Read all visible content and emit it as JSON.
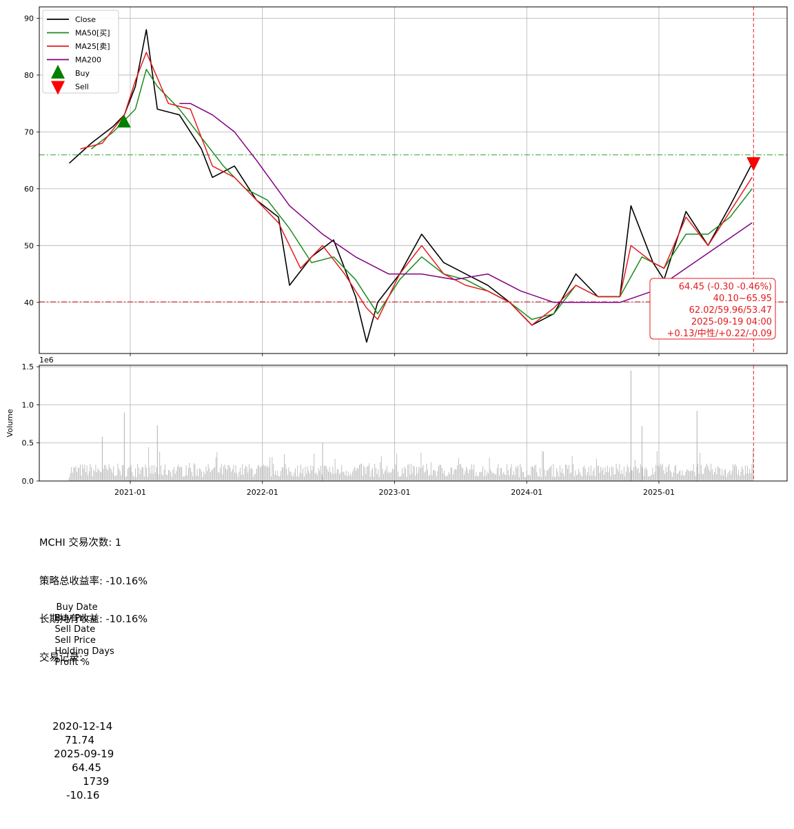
{
  "chart_data": [
    {
      "type": "line",
      "ylim": [
        31,
        92
      ],
      "yticks": [
        "90",
        "80",
        "70",
        "60",
        "50",
        "40"
      ],
      "x_tick_labels": [
        "2021-01",
        "2022-01",
        "2023-01",
        "2024-01",
        "2025-01"
      ],
      "grid": true,
      "legend_position": "upper-left",
      "series": [
        {
          "name": "Close",
          "color": "#000000",
          "x": [
            "2020-07",
            "2020-09",
            "2020-11",
            "2020-12",
            "2021-01",
            "2021-02",
            "2021-03",
            "2021-05",
            "2021-07",
            "2021-08",
            "2021-10",
            "2021-12",
            "2022-02",
            "2022-03",
            "2022-05",
            "2022-07",
            "2022-09",
            "2022-10",
            "2022-11",
            "2023-01",
            "2023-03",
            "2023-05",
            "2023-07",
            "2023-09",
            "2023-11",
            "2024-01",
            "2024-03",
            "2024-05",
            "2024-07",
            "2024-09",
            "2024-10",
            "2024-12",
            "2025-01",
            "2025-03",
            "2025-05",
            "2025-07",
            "2025-09"
          ],
          "values": [
            64.5,
            68,
            71,
            73,
            78,
            88,
            74,
            73,
            67,
            62,
            64,
            58,
            55,
            43,
            48,
            51,
            41,
            33,
            40,
            45,
            52,
            47,
            45,
            43,
            40,
            36,
            38,
            45,
            41,
            41,
            57,
            47,
            44,
            56,
            50,
            57,
            64.45
          ]
        },
        {
          "name": "MA50[买]",
          "color": "#1a8a1a",
          "x": [
            "2020-09",
            "2020-11",
            "2021-01",
            "2021-02",
            "2021-03",
            "2021-05",
            "2021-07",
            "2021-09",
            "2021-11",
            "2022-01",
            "2022-03",
            "2022-05",
            "2022-07",
            "2022-09",
            "2022-11",
            "2023-01",
            "2023-03",
            "2023-05",
            "2023-07",
            "2023-09",
            "2023-11",
            "2024-01",
            "2024-03",
            "2024-05",
            "2024-07",
            "2024-09",
            "2024-11",
            "2025-01",
            "2025-03",
            "2025-05",
            "2025-07",
            "2025-09"
          ],
          "values": [
            67,
            70,
            74,
            81,
            78,
            74,
            69,
            64,
            60,
            58,
            53,
            47,
            48,
            44,
            38,
            44,
            48,
            45,
            44,
            42,
            40,
            37,
            38,
            43,
            41,
            41,
            48,
            46,
            52,
            52,
            55,
            60
          ]
        },
        {
          "name": "MA25[卖]",
          "color": "#e41a1c",
          "x": [
            "2020-08",
            "2020-10",
            "2020-12",
            "2021-01",
            "2021-02",
            "2021-04",
            "2021-06",
            "2021-08",
            "2021-10",
            "2021-12",
            "2022-02",
            "2022-04",
            "2022-06",
            "2022-08",
            "2022-10",
            "2022-11",
            "2023-01",
            "2023-03",
            "2023-05",
            "2023-07",
            "2023-09",
            "2023-11",
            "2024-01",
            "2024-03",
            "2024-05",
            "2024-07",
            "2024-09",
            "2024-10",
            "2024-12",
            "2025-01",
            "2025-03",
            "2025-05",
            "2025-07",
            "2025-09"
          ],
          "values": [
            67,
            68,
            73,
            79,
            84,
            75,
            74,
            64,
            62,
            58,
            54,
            46,
            50,
            45,
            39,
            37,
            45,
            50,
            45,
            43,
            42,
            40,
            36,
            39,
            43,
            41,
            41,
            50,
            47,
            46,
            55,
            50,
            56,
            62
          ]
        },
        {
          "name": "MA200",
          "color": "#800080",
          "x": [
            "2021-05",
            "2021-06",
            "2021-08",
            "2021-10",
            "2021-12",
            "2022-03",
            "2022-06",
            "2022-09",
            "2022-12",
            "2023-03",
            "2023-06",
            "2023-09",
            "2023-12",
            "2024-03",
            "2024-06",
            "2024-09",
            "2024-12",
            "2025-03",
            "2025-06",
            "2025-09"
          ],
          "values": [
            75,
            75,
            73,
            70,
            65,
            57,
            52,
            48,
            45,
            45,
            44,
            45,
            42,
            40,
            40,
            40,
            42,
            46,
            50,
            54
          ]
        }
      ],
      "markers": [
        {
          "name": "Buy",
          "symbol": "triangle-up",
          "color": "#008000",
          "x": "2020-12-14",
          "value": 71.74
        },
        {
          "name": "Sell",
          "symbol": "triangle-down",
          "color": "#ff0000",
          "x": "2025-09-19",
          "value": 64.45
        }
      ],
      "reference_lines": [
        {
          "axis": "y",
          "value": 65.95,
          "color": "#2ca02c",
          "style": "dashdot"
        },
        {
          "axis": "y",
          "value": 40.1,
          "color": "#e41a1c",
          "style": "dashdot"
        },
        {
          "axis": "x",
          "value": "2025-09-19",
          "color": "#e41a1c",
          "style": "dashed"
        }
      ],
      "annotation": {
        "lines": [
          "64.45 (-0.30 -0.46%)",
          "40.10~65.95",
          "62.02/59.96/53.47",
          "2025-09-19 04:00",
          "+0.13/中性/+0.22/-0.09"
        ],
        "color": "#e41a1c",
        "position": "bottom-right"
      }
    },
    {
      "type": "bar",
      "ylabel": "Volume",
      "scale_label": "1e6",
      "ylim": [
        0,
        1.52
      ],
      "yticks": [
        "1.5",
        "1.0",
        "0.5",
        "0.0"
      ],
      "x_tick_labels": [
        "2021-01",
        "2022-01",
        "2023-01",
        "2024-01",
        "2025-01"
      ],
      "bar_color": "#b0b0b0",
      "grid": true,
      "peaks": [
        {
          "x": "2020-10",
          "value": 0.58
        },
        {
          "x": "2020-12",
          "value": 0.9
        },
        {
          "x": "2021-03",
          "value": 0.73
        },
        {
          "x": "2022-06",
          "value": 0.5
        },
        {
          "x": "2024-10",
          "value": 1.45
        },
        {
          "x": "2024-11",
          "value": 0.72
        },
        {
          "x": "2025-04",
          "value": 0.92
        }
      ]
    }
  ],
  "legend": {
    "items": [
      {
        "label": "Close",
        "color": "#000000",
        "kind": "line"
      },
      {
        "label": "MA50[买]",
        "color": "#1a8a1a",
        "kind": "line"
      },
      {
        "label": "MA25[卖]",
        "color": "#e41a1c",
        "kind": "line"
      },
      {
        "label": "MA200",
        "color": "#800080",
        "kind": "line"
      },
      {
        "label": "Buy",
        "color": "#008000",
        "kind": "triangle-up"
      },
      {
        "label": "Sell",
        "color": "#ff0000",
        "kind": "triangle-down"
      }
    ]
  },
  "summary": {
    "trade_count": "MCHI 交易次数: 1",
    "strategy_return": "策略总收益率: -10.16%",
    "hold_return": "长期持有收益: -10.16%",
    "records_title": "交易记录:"
  },
  "trade_table": {
    "headers": [
      "Buy Date",
      "Buy Price",
      "Sell Date",
      "Sell Price",
      "Holding Days",
      "Profit %"
    ],
    "rows": [
      [
        "2020-12-14",
        "71.74",
        "2025-09-19",
        "64.45",
        "1739",
        "-10.16"
      ]
    ]
  }
}
